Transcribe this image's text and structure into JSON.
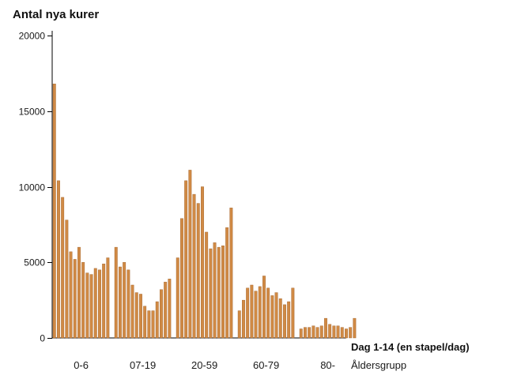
{
  "chart_data": {
    "type": "bar",
    "title": "Antal nya kurer",
    "xlabel": "Dag 1-14 (en stapel/dag)",
    "group_label": "Åldersgrupp",
    "ylabel": "",
    "ylim": [
      0,
      20000
    ],
    "yticks": [
      0,
      5000,
      10000,
      15000,
      20000
    ],
    "grid": false,
    "bar_color": "#d08a45",
    "bar_stroke": "#a0622a",
    "categories": [
      "0-6",
      "07-19",
      "20-59",
      "60-79",
      "80-"
    ],
    "groups": [
      {
        "name": "0-6",
        "values": [
          16800,
          10400,
          9300,
          7800,
          5700,
          5200,
          6000,
          5000,
          4300,
          4200,
          4600,
          4500,
          4900,
          5300
        ]
      },
      {
        "name": "07-19",
        "values": [
          6000,
          4700,
          5000,
          4500,
          3500,
          3000,
          2900,
          2100,
          1800,
          1800,
          2400,
          3200,
          3700,
          3900
        ]
      },
      {
        "name": "20-59",
        "values": [
          5300,
          7900,
          10400,
          11100,
          9500,
          8900,
          10000,
          7000,
          5900,
          6300,
          6000,
          6100,
          7300,
          8600
        ]
      },
      {
        "name": "60-79",
        "values": [
          1800,
          2500,
          3300,
          3500,
          3100,
          3400,
          4100,
          3300,
          2800,
          3000,
          2600,
          2200,
          2400,
          3300
        ]
      },
      {
        "name": "80-",
        "values": [
          600,
          700,
          700,
          800,
          700,
          800,
          1300,
          900,
          800,
          800,
          700,
          600,
          700,
          1300
        ]
      }
    ]
  }
}
